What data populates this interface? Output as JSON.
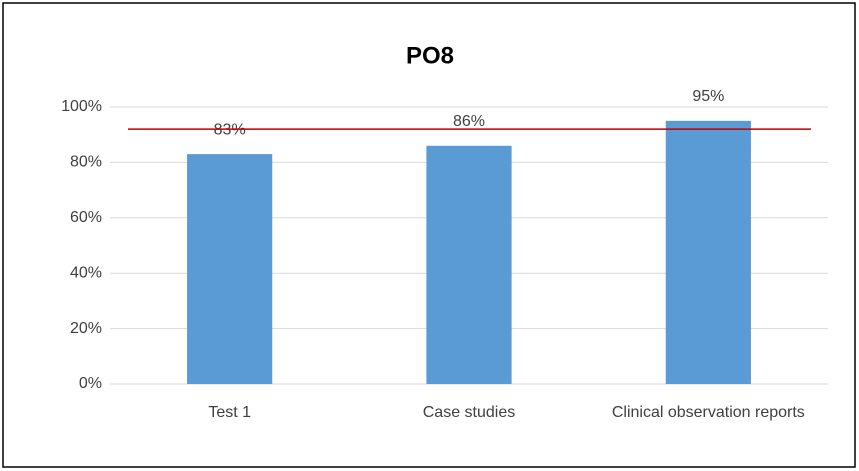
{
  "chart_data": {
    "type": "bar",
    "title": "PO8",
    "categories": [
      "Test 1",
      "Case studies",
      "Clinical observation reports"
    ],
    "values": [
      83,
      86,
      95
    ],
    "value_labels": [
      "83%",
      "86%",
      "95%"
    ],
    "color": "#5b9bd5",
    "ylim": [
      0,
      100
    ],
    "yticks": [
      {
        "value": 0,
        "label": "0%"
      },
      {
        "value": 20,
        "label": "20%"
      },
      {
        "value": 40,
        "label": "40%"
      },
      {
        "value": 60,
        "label": "60%"
      },
      {
        "value": 80,
        "label": "80%"
      },
      {
        "value": 100,
        "label": "100%"
      }
    ],
    "grid": true,
    "reference_line": {
      "value": 92,
      "color": "#c00000"
    }
  }
}
